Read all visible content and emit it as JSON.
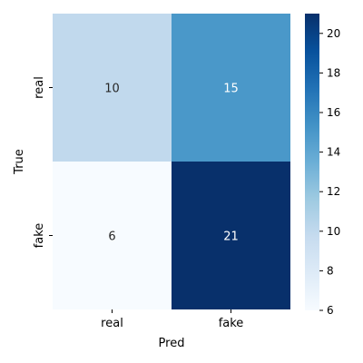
{
  "chart_data": {
    "type": "heatmap",
    "x_categories": [
      "real",
      "fake"
    ],
    "y_categories": [
      "real",
      "fake"
    ],
    "values": [
      [
        10,
        15
      ],
      [
        6,
        21
      ]
    ],
    "xlabel": "Pred",
    "ylabel": "True",
    "colormap": "Blues",
    "colorbar": {
      "vmin": 6,
      "vmax": 21,
      "ticks": [
        "6",
        "8",
        "10",
        "12",
        "14",
        "16",
        "18",
        "20"
      ]
    },
    "annotations": true
  }
}
